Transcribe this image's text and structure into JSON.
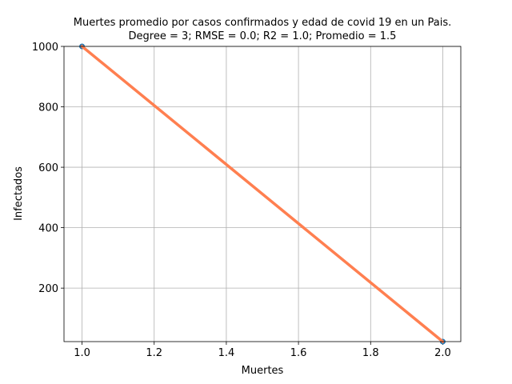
{
  "chart_data": {
    "type": "line",
    "title": "Muertes promedio por casos confirmados y edad de covid 19 en un Pais.",
    "subtitle": "Degree = 3; RMSE = 0.0; R2 = 1.0; Promedio = 1.5",
    "xlabel": "Muertes",
    "ylabel": "Infectados",
    "xlim": [
      0.95,
      2.05
    ],
    "ylim": [
      23,
      1000
    ],
    "xticks": [
      1.0,
      1.2,
      1.4,
      1.6,
      1.8,
      2.0
    ],
    "xtick_labels": [
      "1.0",
      "1.2",
      "1.4",
      "1.6",
      "1.8",
      "2.0"
    ],
    "yticks": [
      200,
      400,
      600,
      800,
      1000
    ],
    "ytick_labels": [
      "200",
      "400",
      "600",
      "800",
      "1000"
    ],
    "grid": true,
    "series": [
      {
        "kind": "scatter",
        "color": "#1f77b4",
        "x": [
          1.0,
          2.0
        ],
        "y": [
          1000,
          23
        ]
      },
      {
        "kind": "line",
        "color": "#ff7f50",
        "x": [
          1.0,
          2.0
        ],
        "y": [
          1000,
          23
        ]
      }
    ]
  }
}
